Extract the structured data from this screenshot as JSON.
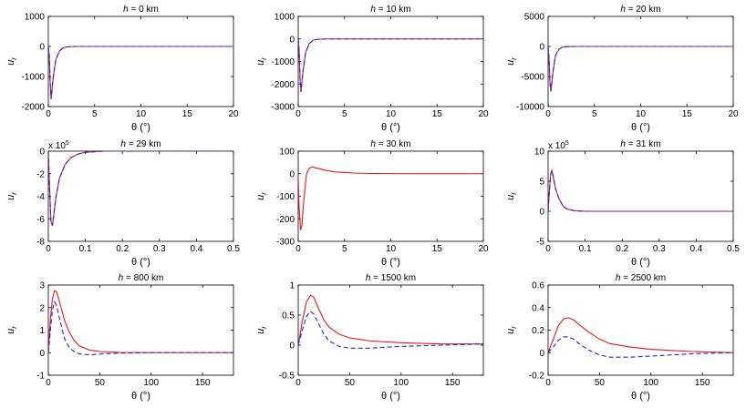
{
  "colors": {
    "solid": "#e8161b",
    "dashed": "#1f25d6",
    "axis": "#000000"
  },
  "chart_data": [
    {
      "type": "line",
      "title": "h = 0 km",
      "xlabel": "θ (°)",
      "ylabel": "u_r",
      "xlim": [
        0,
        20
      ],
      "ylim": [
        -2000,
        1000
      ],
      "xticks": [
        "0",
        "5",
        "10",
        "15",
        "20"
      ],
      "yticks": [
        "-2000",
        "-1000",
        "0",
        "1000"
      ],
      "xtick_values": [
        0,
        5,
        10,
        15,
        20
      ],
      "ytick_values": [
        -2000,
        -1000,
        0,
        1000
      ],
      "exponent": "",
      "series": [
        {
          "style": "solid",
          "x": [
            0,
            0.1,
            0.2,
            0.3,
            0.5,
            0.8,
            1.2,
            1.6,
            2,
            3,
            5,
            10,
            20
          ],
          "y": [
            0,
            -300,
            -1200,
            -1750,
            -1100,
            -450,
            -150,
            -50,
            -15,
            0,
            0,
            0,
            0
          ]
        },
        {
          "style": "dashed",
          "x": [
            0,
            0.1,
            0.2,
            0.3,
            0.5,
            0.8,
            1.2,
            1.6,
            2,
            3,
            5,
            10,
            20
          ],
          "y": [
            0,
            -300,
            -1200,
            -1750,
            -1100,
            -450,
            -150,
            -50,
            -15,
            0,
            0,
            0,
            0
          ]
        }
      ]
    },
    {
      "type": "line",
      "title": "h = 10 km",
      "xlabel": "θ (°)",
      "ylabel": "u_r",
      "xlim": [
        0,
        20
      ],
      "ylim": [
        -3000,
        1000
      ],
      "xticks": [
        "0",
        "5",
        "10",
        "15",
        "20"
      ],
      "yticks": [
        "-3000",
        "-2000",
        "-1000",
        "0",
        "1000"
      ],
      "xtick_values": [
        0,
        5,
        10,
        15,
        20
      ],
      "ytick_values": [
        -3000,
        -2000,
        -1000,
        0,
        1000
      ],
      "exponent": "",
      "series": [
        {
          "style": "solid",
          "x": [
            0,
            0.1,
            0.2,
            0.3,
            0.5,
            0.8,
            1.2,
            1.6,
            2,
            3,
            5,
            10,
            20
          ],
          "y": [
            0,
            -500,
            -1800,
            -2350,
            -1500,
            -600,
            -200,
            -60,
            -20,
            0,
            0,
            0,
            0
          ]
        },
        {
          "style": "dashed",
          "x": [
            0,
            0.1,
            0.2,
            0.3,
            0.5,
            0.8,
            1.2,
            1.6,
            2,
            3,
            5,
            10,
            20
          ],
          "y": [
            0,
            -500,
            -1800,
            -2350,
            -1500,
            -600,
            -200,
            -60,
            -20,
            0,
            0,
            0,
            0
          ]
        }
      ]
    },
    {
      "type": "line",
      "title": "h = 20 km",
      "xlabel": "θ (°)",
      "ylabel": "u_r",
      "xlim": [
        0,
        20
      ],
      "ylim": [
        -10000,
        5000
      ],
      "xticks": [
        "0",
        "5",
        "10",
        "15",
        "20"
      ],
      "yticks": [
        "-10000",
        "-5000",
        "0",
        "5000"
      ],
      "xtick_values": [
        0,
        5,
        10,
        15,
        20
      ],
      "ytick_values": [
        -10000,
        -5000,
        0,
        5000
      ],
      "exponent": "",
      "series": [
        {
          "style": "solid",
          "x": [
            0,
            0.1,
            0.2,
            0.3,
            0.5,
            0.8,
            1.2,
            1.6,
            2,
            3,
            5,
            10,
            20
          ],
          "y": [
            0,
            -2000,
            -6000,
            -7500,
            -4500,
            -1500,
            -400,
            -100,
            -30,
            0,
            0,
            0,
            0
          ]
        },
        {
          "style": "dashed",
          "x": [
            0,
            0.1,
            0.2,
            0.3,
            0.5,
            0.8,
            1.2,
            1.6,
            2,
            3,
            5,
            10,
            20
          ],
          "y": [
            0,
            -2000,
            -6000,
            -7500,
            -4500,
            -1500,
            -400,
            -100,
            -30,
            0,
            0,
            0,
            0
          ]
        }
      ]
    },
    {
      "type": "line",
      "title": "h = 29 km",
      "xlabel": "θ (°)",
      "ylabel": "u_r",
      "xlim": [
        0,
        0.5
      ],
      "ylim": [
        -8,
        0
      ],
      "xticks": [
        "0",
        "0.1",
        "0.2",
        "0.3",
        "0.4",
        "0.5"
      ],
      "yticks": [
        "-8",
        "-6",
        "-4",
        "-2",
        "0"
      ],
      "xtick_values": [
        0,
        0.1,
        0.2,
        0.3,
        0.4,
        0.5
      ],
      "ytick_values": [
        -8,
        -6,
        -4,
        -2,
        0
      ],
      "exponent": "x 10",
      "exponent_power": "5",
      "series": [
        {
          "style": "solid",
          "x": [
            0,
            0.003,
            0.007,
            0.011,
            0.015,
            0.02,
            0.03,
            0.045,
            0.06,
            0.08,
            0.1,
            0.15,
            0.2,
            0.5
          ],
          "y": [
            0,
            -3,
            -6.2,
            -6.6,
            -5.6,
            -4.2,
            -2.4,
            -1.2,
            -0.6,
            -0.25,
            -0.1,
            0,
            0,
            0
          ]
        },
        {
          "style": "dashed",
          "x": [
            0,
            0.003,
            0.007,
            0.011,
            0.015,
            0.02,
            0.03,
            0.045,
            0.06,
            0.08,
            0.1,
            0.15,
            0.2,
            0.5
          ],
          "y": [
            0,
            -3,
            -6.2,
            -6.6,
            -5.6,
            -4.2,
            -2.4,
            -1.2,
            -0.6,
            -0.25,
            -0.1,
            0,
            0,
            0
          ]
        }
      ]
    },
    {
      "type": "line",
      "title": "h = 30 km",
      "xlabel": "θ (°)",
      "ylabel": "u_r",
      "xlim": [
        0,
        20
      ],
      "ylim": [
        -300,
        100
      ],
      "xticks": [
        "0",
        "5",
        "10",
        "15",
        "20"
      ],
      "yticks": [
        "-300",
        "-200",
        "-100",
        "0",
        "100"
      ],
      "xtick_values": [
        0,
        5,
        10,
        15,
        20
      ],
      "ytick_values": [
        -300,
        -200,
        -100,
        0,
        100
      ],
      "exponent": "",
      "series": [
        {
          "style": "solid",
          "x": [
            0,
            0.1,
            0.25,
            0.4,
            0.6,
            0.9,
            1.2,
            1.5,
            2,
            3,
            4,
            6,
            8,
            12,
            20
          ],
          "y": [
            -20,
            -150,
            -250,
            -230,
            -120,
            0,
            25,
            30,
            25,
            15,
            8,
            3,
            1,
            0,
            0
          ]
        }
      ]
    },
    {
      "type": "line",
      "title": "h = 31 km",
      "xlabel": "θ (°)",
      "ylabel": "u_r",
      "xlim": [
        0,
        0.5
      ],
      "ylim": [
        -5,
        10
      ],
      "xticks": [
        "0",
        "0.1",
        "0.2",
        "0.3",
        "0.4",
        "0.5"
      ],
      "yticks": [
        "-5",
        "0",
        "5",
        "10"
      ],
      "xtick_values": [
        0,
        0.1,
        0.2,
        0.3,
        0.4,
        0.5
      ],
      "ytick_values": [
        -5,
        0,
        5,
        10
      ],
      "exponent": "x 10",
      "exponent_power": "5",
      "series": [
        {
          "style": "solid",
          "x": [
            0,
            0.003,
            0.007,
            0.01,
            0.013,
            0.02,
            0.03,
            0.04,
            0.05,
            0.07,
            0.1,
            0.2,
            0.5
          ],
          "y": [
            0,
            3,
            6.2,
            6.8,
            6.0,
            3.8,
            2.0,
            0.9,
            0.4,
            0.1,
            0,
            0,
            0
          ]
        },
        {
          "style": "dashed",
          "x": [
            0,
            0.003,
            0.007,
            0.01,
            0.013,
            0.02,
            0.03,
            0.04,
            0.05,
            0.07,
            0.1,
            0.2,
            0.5
          ],
          "y": [
            0,
            3,
            6.2,
            6.8,
            6.0,
            3.8,
            2.0,
            0.9,
            0.4,
            0.1,
            0,
            0,
            0
          ]
        }
      ]
    },
    {
      "type": "line",
      "title": "h = 800 km",
      "xlabel": "θ (°)",
      "ylabel": "u_r",
      "xlim": [
        0,
        180
      ],
      "ylim": [
        -1,
        3
      ],
      "xticks": [
        "0",
        "50",
        "100",
        "150"
      ],
      "yticks": [
        "-1",
        "0",
        "1",
        "2",
        "3"
      ],
      "xtick_values": [
        0,
        50,
        100,
        150
      ],
      "ytick_values": [
        -1,
        0,
        1,
        2,
        3
      ],
      "exponent": "",
      "series": [
        {
          "style": "solid",
          "x": [
            0,
            2,
            4,
            6,
            8,
            10,
            13,
            16,
            20,
            25,
            30,
            40,
            50,
            70,
            100,
            180
          ],
          "y": [
            0,
            1.5,
            2.4,
            2.75,
            2.7,
            2.4,
            1.9,
            1.4,
            0.95,
            0.55,
            0.3,
            0.12,
            0.05,
            0.01,
            0,
            0
          ]
        },
        {
          "style": "dashed",
          "x": [
            0,
            2,
            4,
            6,
            8,
            10,
            13,
            16,
            20,
            25,
            30,
            40,
            50,
            70,
            100,
            180
          ],
          "y": [
            0,
            1.0,
            1.9,
            2.25,
            2.1,
            1.7,
            1.1,
            0.6,
            0.25,
            0.05,
            -0.05,
            -0.1,
            -0.06,
            -0.02,
            0,
            0
          ]
        }
      ]
    },
    {
      "type": "line",
      "title": "h = 1500 km",
      "xlabel": "θ (°)",
      "ylabel": "u_r",
      "xlim": [
        0,
        180
      ],
      "ylim": [
        -0.5,
        1
      ],
      "xticks": [
        "0",
        "50",
        "100",
        "150"
      ],
      "yticks": [
        "-0.5",
        "0",
        "0.5",
        "1"
      ],
      "xtick_values": [
        0,
        50,
        100,
        150
      ],
      "ytick_values": [
        -0.5,
        0,
        0.5,
        1
      ],
      "exponent": "",
      "series": [
        {
          "style": "solid",
          "x": [
            0,
            4,
            8,
            12,
            15,
            20,
            25,
            30,
            40,
            50,
            70,
            100,
            140,
            180
          ],
          "y": [
            0,
            0.4,
            0.72,
            0.83,
            0.8,
            0.6,
            0.42,
            0.3,
            0.18,
            0.12,
            0.07,
            0.04,
            0.02,
            0.02
          ]
        },
        {
          "style": "dashed",
          "x": [
            0,
            4,
            8,
            12,
            15,
            20,
            25,
            30,
            40,
            50,
            70,
            100,
            140,
            180
          ],
          "y": [
            0,
            0.25,
            0.48,
            0.56,
            0.52,
            0.35,
            0.18,
            0.07,
            -0.02,
            -0.05,
            -0.05,
            -0.02,
            0,
            0.02
          ]
        }
      ]
    },
    {
      "type": "line",
      "title": "h = 2500 km",
      "xlabel": "θ (°)",
      "ylabel": "u_r",
      "xlim": [
        0,
        180
      ],
      "ylim": [
        -0.2,
        0.6
      ],
      "xticks": [
        "0",
        "50",
        "100",
        "150"
      ],
      "yticks": [
        "-0.2",
        "0",
        "0.2",
        "0.4",
        "0.6"
      ],
      "xtick_values": [
        0,
        50,
        100,
        150
      ],
      "ytick_values": [
        -0.2,
        0,
        0.2,
        0.4,
        0.6
      ],
      "exponent": "",
      "series": [
        {
          "style": "solid",
          "x": [
            0,
            5,
            10,
            15,
            20,
            25,
            30,
            40,
            50,
            60,
            80,
            100,
            140,
            180
          ],
          "y": [
            0,
            0.12,
            0.24,
            0.3,
            0.31,
            0.29,
            0.25,
            0.18,
            0.12,
            0.08,
            0.05,
            0.03,
            0.01,
            0
          ]
        },
        {
          "style": "dashed",
          "x": [
            0,
            5,
            10,
            15,
            20,
            25,
            30,
            40,
            50,
            60,
            80,
            100,
            140,
            180
          ],
          "y": [
            0,
            0.05,
            0.11,
            0.14,
            0.14,
            0.12,
            0.08,
            0.02,
            -0.02,
            -0.04,
            -0.04,
            -0.03,
            -0.01,
            0
          ]
        }
      ]
    }
  ]
}
